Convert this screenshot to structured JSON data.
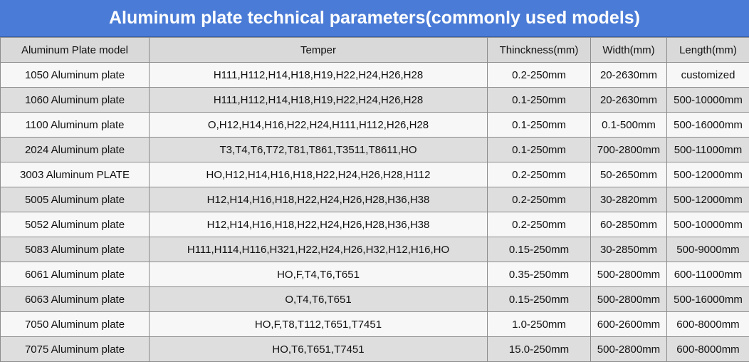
{
  "header": {
    "title": "Aluminum plate technical parameters(commonly used models)"
  },
  "table": {
    "columns": [
      "Aluminum Plate model",
      "Temper",
      "Thinckness(mm)",
      "Width(mm)",
      "Length(mm)"
    ],
    "rows": [
      [
        "1050 Aluminum plate",
        "H111,H112,H14,H18,H19,H22,H24,H26,H28",
        "0.2-250mm",
        "20-2630mm",
        "customized"
      ],
      [
        "1060 Aluminum plate",
        "H111,H112,H14,H18,H19,H22,H24,H26,H28",
        "0.1-250mm",
        "20-2630mm",
        "500-10000mm"
      ],
      [
        "1100 Aluminum plate",
        "O,H12,H14,H16,H22,H24,H111,H112,H26,H28",
        "0.1-250mm",
        "0.1-500mm",
        "500-16000mm"
      ],
      [
        "2024 Aluminum plate",
        "T3,T4,T6,T72,T81,T861,T3511,T8611,HO",
        "0.1-250mm",
        "700-2800mm",
        "500-11000mm"
      ],
      [
        "3003 Aluminum PLATE",
        "HO,H12,H14,H16,H18,H22,H24,H26,H28,H112",
        "0.2-250mm",
        "50-2650mm",
        "500-12000mm"
      ],
      [
        "5005 Aluminum plate",
        "H12,H14,H16,H18,H22,H24,H26,H28,H36,H38",
        "0.2-250mm",
        "30-2820mm",
        "500-12000mm"
      ],
      [
        "5052 Aluminum plate",
        "H12,H14,H16,H18,H22,H24,H26,H28,H36,H38",
        "0.2-250mm",
        "60-2850mm",
        "500-10000mm"
      ],
      [
        "5083 Aluminum plate",
        "H111,H114,H116,H321,H22,H24,H26,H32,H12,H16,HO",
        "0.15-250mm",
        "30-2850mm",
        "500-9000mm"
      ],
      [
        "6061 Aluminum plate",
        "HO,F,T4,T6,T651",
        "0.35-250mm",
        "500-2800mm",
        "600-11000mm"
      ],
      [
        "6063 Aluminum plate",
        "O,T4,T6,T651",
        "0.15-250mm",
        "500-2800mm",
        "500-16000mm"
      ],
      [
        "7050 Aluminum plate",
        "HO,F,T8,T112,T651,T7451",
        "1.0-250mm",
        "600-2600mm",
        "600-8000mm"
      ],
      [
        "7075 Aluminum plate",
        "HO,T6,T651,T7451",
        "15.0-250mm",
        "500-2800mm",
        "600-8000mm"
      ]
    ]
  }
}
